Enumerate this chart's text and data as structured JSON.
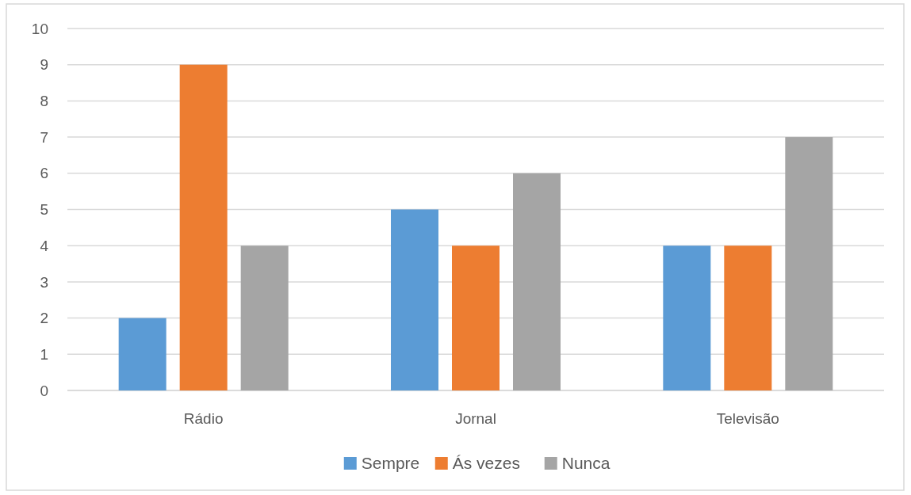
{
  "chart_data": {
    "type": "bar",
    "categories": [
      "Rádio",
      "Jornal",
      "Televisão"
    ],
    "series": [
      {
        "name": "Sempre",
        "color": "#5b9bd5",
        "values": [
          2,
          5,
          4
        ]
      },
      {
        "name": "Ás vezes",
        "color": "#ed7d31",
        "values": [
          9,
          4,
          4
        ]
      },
      {
        "name": "Nunca",
        "color": "#a5a5a5",
        "values": [
          4,
          6,
          7
        ]
      }
    ],
    "ylim": [
      0,
      10
    ],
    "yticks": [
      0,
      1,
      2,
      3,
      4,
      5,
      6,
      7,
      8,
      9,
      10
    ],
    "grid": "y",
    "legend": "bottom"
  }
}
